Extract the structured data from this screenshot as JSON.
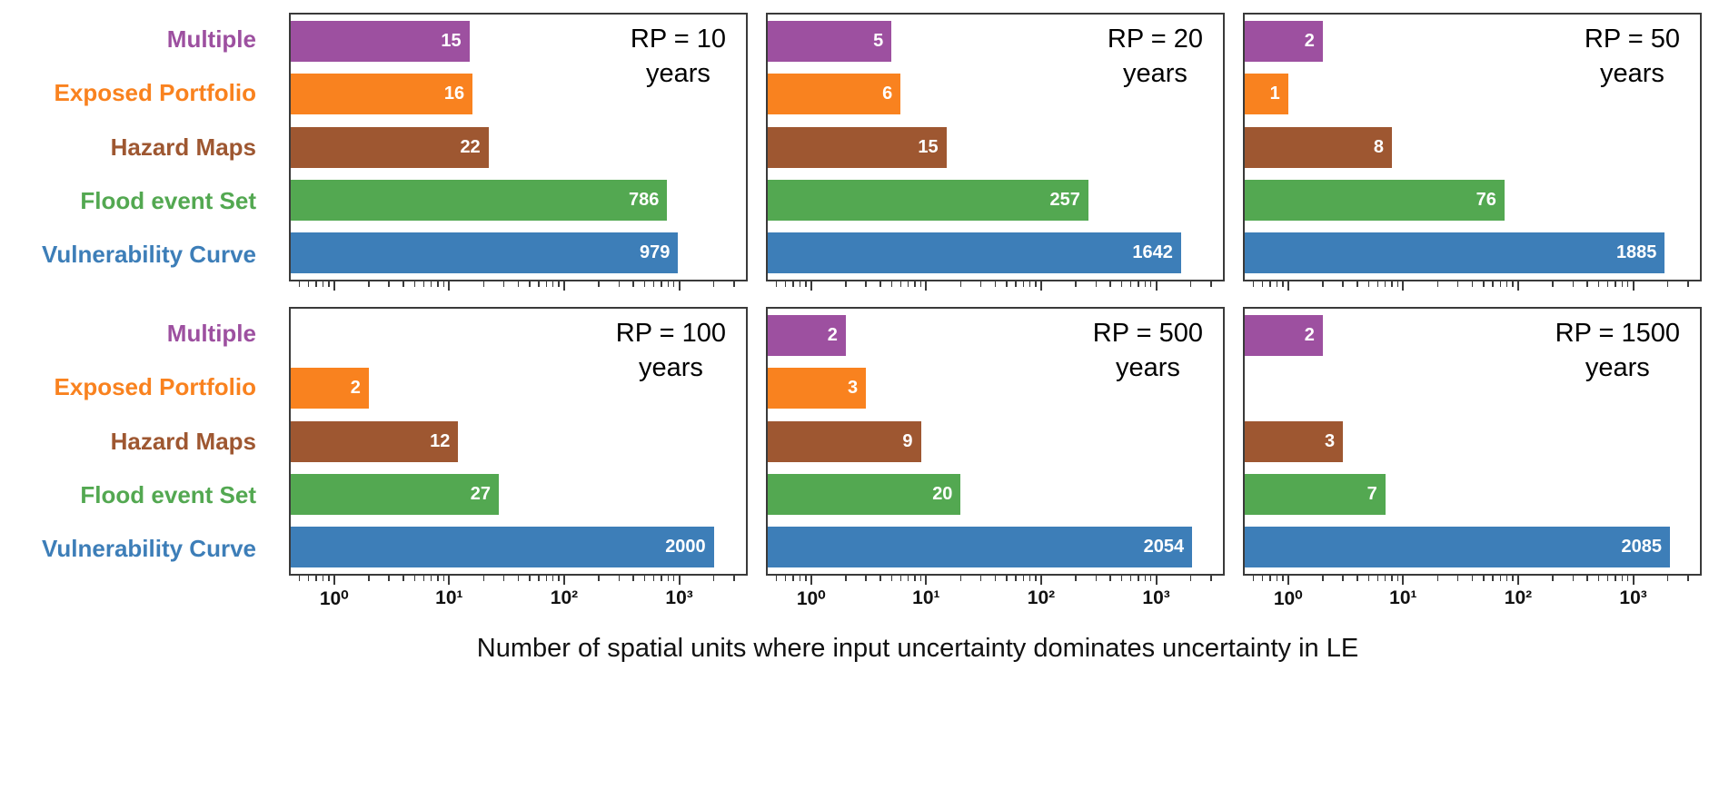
{
  "chart_data": {
    "type": "bar",
    "orientation": "horizontal",
    "xscale": "log",
    "grid": false,
    "xlabel": "Number of spatial units where input uncertainty dominates uncertainty in LE",
    "categories": [
      {
        "label": "Multiple",
        "color": "#9d50a0"
      },
      {
        "label": "Exposed Portfolio",
        "color": "#f9821f"
      },
      {
        "label": "Hazard Maps",
        "color": "#9e5731"
      },
      {
        "label": "Flood event Set",
        "color": "#53a851"
      },
      {
        "label": "Vulnerability Curve",
        "color": "#3d7eb8"
      }
    ],
    "x_ticks": [
      1,
      10,
      100,
      1000
    ],
    "x_tick_labels": [
      "10⁰",
      "10¹",
      "10²",
      "10³"
    ],
    "xlim": [
      0.42,
      3800
    ],
    "panels": [
      {
        "title": "RP = 10",
        "title_line2": "years",
        "values": [
          15,
          16,
          22,
          786,
          979
        ]
      },
      {
        "title": "RP = 20",
        "title_line2": "years",
        "values": [
          5,
          6,
          15,
          257,
          1642
        ]
      },
      {
        "title": "RP = 50",
        "title_line2": "years",
        "values": [
          2,
          1,
          8,
          76,
          1885
        ]
      },
      {
        "title": "RP = 100",
        "title_line2": "years",
        "values": [
          null,
          2,
          12,
          27,
          2000
        ]
      },
      {
        "title": "RP = 500",
        "title_line2": "years",
        "values": [
          2,
          3,
          9,
          20,
          2054
        ]
      },
      {
        "title": "RP = 1500",
        "title_line2": "years",
        "values": [
          2,
          null,
          3,
          7,
          2085
        ]
      }
    ]
  }
}
